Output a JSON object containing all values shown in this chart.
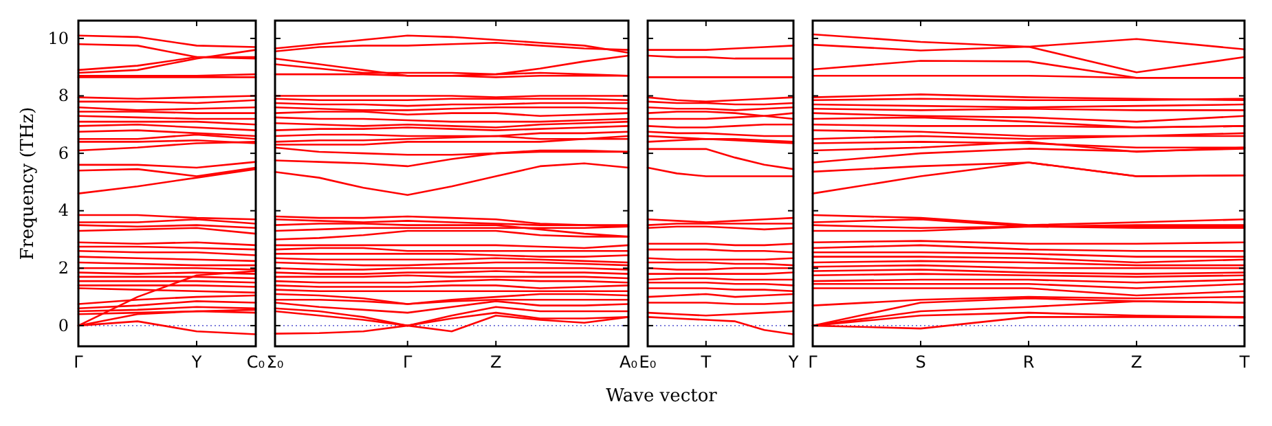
{
  "chart_data": [
    {
      "type": "line",
      "ylabel": "Frequency (THz)",
      "categories": [
        "Γ",
        null,
        "Y",
        "C₀"
      ],
      "ylim": [
        -0.72,
        10.62
      ],
      "yticks": [
        0,
        2,
        4,
        6,
        8,
        10
      ],
      "ref_lines": [
        {
          "axis": "y",
          "value": 0,
          "color": "#6b6bd6",
          "line_style": "dotted"
        }
      ],
      "series": [
        {
          "color": "#ff0000",
          "values": [
            10.1,
            10.05,
            9.75,
            9.7
          ]
        },
        {
          "color": "#ff0000",
          "values": [
            9.8,
            9.75,
            9.35,
            9.3
          ]
        },
        {
          "color": "#ff0000",
          "values": [
            8.9,
            9.05,
            9.35,
            9.35
          ]
        },
        {
          "color": "#ff0000",
          "values": [
            8.8,
            8.9,
            9.3,
            9.6
          ]
        },
        {
          "color": "#ff0000",
          "values": [
            8.7,
            8.7,
            8.7,
            8.75
          ]
        },
        {
          "color": "#ff0000",
          "values": [
            8.65,
            8.65,
            8.65,
            8.65
          ]
        },
        {
          "color": "#ff0000",
          "values": [
            7.95,
            7.9,
            7.95,
            8.0
          ]
        },
        {
          "color": "#ff0000",
          "values": [
            7.8,
            7.8,
            7.75,
            7.85
          ]
        },
        {
          "color": "#ff0000",
          "values": [
            7.6,
            7.5,
            7.55,
            7.6
          ]
        },
        {
          "color": "#ff0000",
          "values": [
            7.45,
            7.45,
            7.4,
            7.4
          ]
        },
        {
          "color": "#ff0000",
          "values": [
            7.3,
            7.25,
            7.2,
            7.2
          ]
        },
        {
          "color": "#ff0000",
          "values": [
            7.1,
            7.1,
            7.1,
            7.0
          ]
        },
        {
          "color": "#ff0000",
          "values": [
            6.95,
            7.0,
            6.9,
            6.8
          ]
        },
        {
          "color": "#ff0000",
          "values": [
            6.75,
            6.8,
            6.7,
            6.6
          ]
        },
        {
          "color": "#ff0000",
          "values": [
            6.5,
            6.5,
            6.65,
            6.5
          ]
        },
        {
          "color": "#ff0000",
          "values": [
            6.4,
            6.4,
            6.45,
            6.35
          ]
        },
        {
          "color": "#ff0000",
          "values": [
            6.1,
            6.2,
            6.35,
            6.4
          ]
        },
        {
          "color": "#ff0000",
          "values": [
            5.6,
            5.6,
            5.5,
            5.7
          ]
        },
        {
          "color": "#ff0000",
          "values": [
            5.4,
            5.45,
            5.2,
            5.5
          ]
        },
        {
          "color": "#ff0000",
          "values": [
            4.6,
            4.85,
            5.15,
            5.45
          ]
        },
        {
          "color": "#ff0000",
          "values": [
            3.85,
            3.85,
            3.75,
            3.7
          ]
        },
        {
          "color": "#ff0000",
          "values": [
            3.6,
            3.6,
            3.7,
            3.55
          ]
        },
        {
          "color": "#ff0000",
          "values": [
            3.5,
            3.45,
            3.5,
            3.4
          ]
        },
        {
          "color": "#ff0000",
          "values": [
            3.3,
            3.35,
            3.4,
            3.2
          ]
        },
        {
          "color": "#ff0000",
          "values": [
            2.9,
            2.85,
            2.9,
            2.8
          ]
        },
        {
          "color": "#ff0000",
          "values": [
            2.75,
            2.75,
            2.7,
            2.65
          ]
        },
        {
          "color": "#ff0000",
          "values": [
            2.6,
            2.55,
            2.55,
            2.45
          ]
        },
        {
          "color": "#ff0000",
          "values": [
            2.4,
            2.35,
            2.3,
            2.25
          ]
        },
        {
          "color": "#ff0000",
          "values": [
            2.2,
            2.15,
            2.1,
            2.1
          ]
        },
        {
          "color": "#ff0000",
          "values": [
            2.0,
            2.0,
            2.0,
            1.95
          ]
        },
        {
          "color": "#ff0000",
          "values": [
            1.85,
            1.8,
            1.85,
            1.8
          ]
        },
        {
          "color": "#ff0000",
          "values": [
            1.7,
            1.7,
            1.7,
            1.65
          ]
        },
        {
          "color": "#ff0000",
          "values": [
            1.55,
            1.55,
            1.55,
            1.5
          ]
        },
        {
          "color": "#ff0000",
          "values": [
            1.4,
            1.4,
            1.4,
            1.35
          ]
        },
        {
          "color": "#ff0000",
          "values": [
            1.3,
            1.25,
            1.2,
            1.15
          ]
        },
        {
          "color": "#ff0000",
          "values": [
            0.75,
            0.9,
            1.0,
            1.05
          ]
        },
        {
          "color": "#ff0000",
          "values": [
            0.6,
            0.7,
            0.85,
            0.8
          ]
        },
        {
          "color": "#ff0000",
          "values": [
            0.5,
            0.55,
            0.65,
            0.6
          ]
        },
        {
          "color": "#ff0000",
          "values": [
            0.4,
            0.45,
            0.5,
            0.45
          ]
        },
        {
          "color": "#ff0000",
          "values": [
            0,
            1.0,
            1.75,
            1.9
          ]
        },
        {
          "color": "#ff0000",
          "values": [
            0,
            0.4,
            0.5,
            0.55
          ]
        },
        {
          "color": "#ff0000",
          "values": [
            0,
            0.15,
            -0.2,
            -0.3
          ]
        }
      ]
    },
    {
      "type": "line",
      "categories": [
        "Σ₀",
        null,
        null,
        "Γ",
        null,
        "Z",
        null,
        null,
        "A₀"
      ],
      "ylim": [
        -0.72,
        10.62
      ],
      "yticks": [
        0,
        2,
        4,
        6,
        8,
        10
      ],
      "tick_labels": "x",
      "ref_lines": [
        {
          "axis": "y",
          "value": 0,
          "color": "#6b6bd6",
          "line_style": "dotted"
        }
      ],
      "series": [
        {
          "color": "#ff0000",
          "values": [
            9.65,
            9.8,
            9.95,
            10.1,
            10.05,
            9.95,
            9.85,
            9.75,
            9.5
          ]
        },
        {
          "color": "#ff0000",
          "values": [
            9.55,
            9.7,
            9.75,
            9.75,
            9.8,
            9.85,
            9.75,
            9.65,
            9.6
          ]
        },
        {
          "color": "#ff0000",
          "values": [
            9.3,
            9.1,
            8.9,
            8.7,
            8.7,
            8.75,
            8.95,
            9.2,
            9.4
          ]
        },
        {
          "color": "#ff0000",
          "values": [
            9.1,
            8.95,
            8.8,
            8.8,
            8.8,
            8.75,
            8.8,
            8.75,
            8.7
          ]
        },
        {
          "color": "#ff0000",
          "values": [
            8.75,
            8.75,
            8.75,
            8.7,
            8.7,
            8.65,
            8.7,
            8.7,
            8.7
          ]
        },
        {
          "color": "#ff0000",
          "values": [
            8.0,
            8.0,
            8.0,
            8.0,
            8.0,
            7.95,
            8.0,
            8.0,
            8.0
          ]
        },
        {
          "color": "#ff0000",
          "values": [
            7.9,
            7.85,
            7.85,
            7.85,
            7.9,
            7.9,
            7.9,
            7.9,
            7.85
          ]
        },
        {
          "color": "#ff0000",
          "values": [
            7.75,
            7.7,
            7.7,
            7.65,
            7.7,
            7.7,
            7.75,
            7.75,
            7.75
          ]
        },
        {
          "color": "#ff0000",
          "values": [
            7.6,
            7.55,
            7.5,
            7.5,
            7.55,
            7.6,
            7.6,
            7.6,
            7.55
          ]
        },
        {
          "color": "#ff0000",
          "values": [
            7.4,
            7.45,
            7.45,
            7.35,
            7.4,
            7.4,
            7.3,
            7.35,
            7.4
          ]
        },
        {
          "color": "#ff0000",
          "values": [
            7.25,
            7.2,
            7.2,
            7.15,
            7.1,
            7.1,
            7.1,
            7.15,
            7.2
          ]
        },
        {
          "color": "#ff0000",
          "values": [
            7.05,
            7.0,
            6.95,
            7.0,
            6.95,
            6.9,
            7.0,
            7.05,
            7.1
          ]
        },
        {
          "color": "#ff0000",
          "values": [
            6.8,
            6.85,
            6.85,
            6.9,
            6.85,
            6.8,
            6.85,
            6.9,
            6.95
          ]
        },
        {
          "color": "#ff0000",
          "values": [
            6.6,
            6.65,
            6.65,
            6.6,
            6.6,
            6.6,
            6.7,
            6.7,
            6.75
          ]
        },
        {
          "color": "#ff0000",
          "values": [
            6.4,
            6.45,
            6.45,
            6.5,
            6.55,
            6.6,
            6.5,
            6.5,
            6.5
          ]
        },
        {
          "color": "#ff0000",
          "values": [
            6.3,
            6.3,
            6.3,
            6.4,
            6.4,
            6.4,
            6.4,
            6.5,
            6.6
          ]
        },
        {
          "color": "#ff0000",
          "values": [
            6.2,
            6.05,
            6.0,
            5.95,
            5.95,
            6.0,
            6.1,
            6.1,
            6.05
          ]
        },
        {
          "color": "#ff0000",
          "values": [
            5.75,
            5.7,
            5.65,
            5.55,
            5.8,
            6.0,
            6.05,
            6.05,
            6.05
          ]
        },
        {
          "color": "#ff0000",
          "values": [
            5.35,
            5.15,
            4.8,
            4.55,
            4.85,
            5.2,
            5.55,
            5.65,
            5.5
          ]
        },
        {
          "color": "#ff0000",
          "values": [
            3.8,
            3.75,
            3.75,
            3.8,
            3.75,
            3.7,
            3.55,
            3.5,
            3.5
          ]
        },
        {
          "color": "#ff0000",
          "values": [
            3.7,
            3.65,
            3.6,
            3.65,
            3.6,
            3.55,
            3.5,
            3.5,
            3.45
          ]
        },
        {
          "color": "#ff0000",
          "values": [
            3.5,
            3.55,
            3.55,
            3.5,
            3.5,
            3.5,
            3.35,
            3.2,
            3.1
          ]
        },
        {
          "color": "#ff0000",
          "values": [
            3.3,
            3.35,
            3.4,
            3.4,
            3.4,
            3.4,
            3.4,
            3.4,
            3.45
          ]
        },
        {
          "color": "#ff0000",
          "values": [
            3.0,
            3.05,
            3.15,
            3.3,
            3.3,
            3.3,
            3.15,
            3.1,
            3.1
          ]
        },
        {
          "color": "#ff0000",
          "values": [
            2.8,
            2.8,
            2.8,
            2.8,
            2.8,
            2.8,
            2.75,
            2.7,
            2.8
          ]
        },
        {
          "color": "#ff0000",
          "values": [
            2.65,
            2.7,
            2.7,
            2.6,
            2.6,
            2.6,
            2.6,
            2.6,
            2.6
          ]
        },
        {
          "color": "#ff0000",
          "values": [
            2.5,
            2.5,
            2.5,
            2.5,
            2.5,
            2.45,
            2.4,
            2.4,
            2.45
          ]
        },
        {
          "color": "#ff0000",
          "values": [
            2.35,
            2.3,
            2.3,
            2.3,
            2.3,
            2.35,
            2.3,
            2.25,
            2.2
          ]
        },
        {
          "color": "#ff0000",
          "values": [
            2.2,
            2.15,
            2.1,
            2.1,
            2.15,
            2.2,
            2.2,
            2.15,
            2.1
          ]
        },
        {
          "color": "#ff0000",
          "values": [
            2.0,
            1.95,
            1.95,
            2.0,
            2.0,
            2.0,
            2.0,
            2.0,
            1.95
          ]
        },
        {
          "color": "#ff0000",
          "values": [
            1.85,
            1.8,
            1.8,
            1.85,
            1.85,
            1.9,
            1.85,
            1.85,
            1.8
          ]
        },
        {
          "color": "#ff0000",
          "values": [
            1.7,
            1.7,
            1.7,
            1.75,
            1.7,
            1.7,
            1.7,
            1.7,
            1.65
          ]
        },
        {
          "color": "#ff0000",
          "values": [
            1.55,
            1.5,
            1.5,
            1.5,
            1.55,
            1.6,
            1.55,
            1.55,
            1.5
          ]
        },
        {
          "color": "#ff0000",
          "values": [
            1.4,
            1.35,
            1.35,
            1.35,
            1.4,
            1.4,
            1.3,
            1.35,
            1.4
          ]
        },
        {
          "color": "#ff0000",
          "values": [
            1.25,
            1.2,
            1.2,
            1.2,
            1.2,
            1.2,
            1.2,
            1.2,
            1.2
          ]
        },
        {
          "color": "#ff0000",
          "values": [
            1.1,
            1.05,
            0.95,
            0.75,
            0.9,
            1.0,
            1.1,
            1.1,
            1.05
          ]
        },
        {
          "color": "#ff0000",
          "values": [
            0.9,
            0.9,
            0.85,
            0.75,
            0.85,
            0.9,
            0.9,
            0.9,
            0.9
          ]
        },
        {
          "color": "#ff0000",
          "values": [
            0.8,
            0.65,
            0.55,
            0.45,
            0.65,
            0.85,
            0.7,
            0.7,
            0.75
          ]
        },
        {
          "color": "#ff0000",
          "values": [
            0.6,
            0.5,
            0.3,
            0,
            0.35,
            0.65,
            0.5,
            0.5,
            0.5
          ]
        },
        {
          "color": "#ff0000",
          "values": [
            0.5,
            0.35,
            0.2,
            0,
            0.25,
            0.45,
            0.25,
            0.25,
            0.3
          ]
        },
        {
          "color": "#ff0000",
          "values": [
            -0.28,
            -0.26,
            -0.2,
            0,
            -0.2,
            0.35,
            0.2,
            0.1,
            0.3
          ]
        }
      ]
    },
    {
      "type": "line",
      "xlabel": "Wave vector",
      "categories": [
        "E₀",
        null,
        "T",
        null,
        null,
        "Y"
      ],
      "ylim": [
        -0.72,
        10.62
      ],
      "yticks": [
        0,
        2,
        4,
        6,
        8,
        10
      ],
      "tick_labels": "x",
      "ref_lines": [
        {
          "axis": "y",
          "value": 0,
          "color": "#6b6bd6",
          "line_style": "dotted"
        }
      ],
      "series": [
        {
          "color": "#ff0000",
          "values": [
            9.6,
            9.6,
            9.6,
            9.65,
            9.7,
            9.75
          ]
        },
        {
          "color": "#ff0000",
          "values": [
            9.4,
            9.35,
            9.35,
            9.3,
            9.3,
            9.3
          ]
        },
        {
          "color": "#ff0000",
          "values": [
            8.65,
            8.65,
            8.65,
            8.65,
            8.65,
            8.65
          ]
        },
        {
          "color": "#ff0000",
          "values": [
            7.95,
            7.85,
            7.8,
            7.85,
            7.9,
            7.95
          ]
        },
        {
          "color": "#ff0000",
          "values": [
            7.8,
            7.75,
            7.75,
            7.7,
            7.7,
            7.75
          ]
        },
        {
          "color": "#ff0000",
          "values": [
            7.6,
            7.55,
            7.55,
            7.5,
            7.55,
            7.6
          ]
        },
        {
          "color": "#ff0000",
          "values": [
            7.4,
            7.45,
            7.45,
            7.4,
            7.3,
            7.2
          ]
        },
        {
          "color": "#ff0000",
          "values": [
            7.2,
            7.2,
            7.2,
            7.25,
            7.3,
            7.4
          ]
        },
        {
          "color": "#ff0000",
          "values": [
            6.95,
            6.9,
            6.9,
            6.95,
            7.0,
            7.0
          ]
        },
        {
          "color": "#ff0000",
          "values": [
            6.75,
            6.7,
            6.7,
            6.65,
            6.6,
            6.6
          ]
        },
        {
          "color": "#ff0000",
          "values": [
            6.6,
            6.55,
            6.5,
            6.5,
            6.45,
            6.4
          ]
        },
        {
          "color": "#ff0000",
          "values": [
            6.4,
            6.45,
            6.5,
            6.45,
            6.4,
            6.35
          ]
        },
        {
          "color": "#ff0000",
          "values": [
            6.15,
            6.15,
            6.15,
            5.85,
            5.6,
            5.45
          ]
        },
        {
          "color": "#ff0000",
          "values": [
            5.5,
            5.3,
            5.2,
            5.2,
            5.2,
            5.2
          ]
        },
        {
          "color": "#ff0000",
          "values": [
            3.7,
            3.65,
            3.6,
            3.65,
            3.7,
            3.75
          ]
        },
        {
          "color": "#ff0000",
          "values": [
            3.5,
            3.55,
            3.55,
            3.55,
            3.55,
            3.55
          ]
        },
        {
          "color": "#ff0000",
          "values": [
            3.4,
            3.45,
            3.45,
            3.4,
            3.35,
            3.4
          ]
        },
        {
          "color": "#ff0000",
          "values": [
            2.85,
            2.85,
            2.85,
            2.8,
            2.8,
            2.85
          ]
        },
        {
          "color": "#ff0000",
          "values": [
            2.65,
            2.65,
            2.65,
            2.6,
            2.6,
            2.55
          ]
        },
        {
          "color": "#ff0000",
          "values": [
            2.35,
            2.3,
            2.3,
            2.3,
            2.3,
            2.35
          ]
        },
        {
          "color": "#ff0000",
          "values": [
            2.2,
            2.2,
            2.2,
            2.15,
            2.15,
            2.1
          ]
        },
        {
          "color": "#ff0000",
          "values": [
            2.0,
            1.95,
            1.95,
            2.0,
            2.0,
            2.0
          ]
        },
        {
          "color": "#ff0000",
          "values": [
            1.8,
            1.8,
            1.8,
            1.8,
            1.8,
            1.85
          ]
        },
        {
          "color": "#ff0000",
          "values": [
            1.6,
            1.65,
            1.65,
            1.6,
            1.6,
            1.6
          ]
        },
        {
          "color": "#ff0000",
          "values": [
            1.5,
            1.5,
            1.5,
            1.45,
            1.45,
            1.4
          ]
        },
        {
          "color": "#ff0000",
          "values": [
            1.3,
            1.3,
            1.3,
            1.25,
            1.25,
            1.2
          ]
        },
        {
          "color": "#ff0000",
          "values": [
            1.0,
            1.05,
            1.1,
            1.0,
            1.05,
            1.1
          ]
        },
        {
          "color": "#ff0000",
          "values": [
            0.8,
            0.8,
            0.8,
            0.75,
            0.75,
            0.8
          ]
        },
        {
          "color": "#ff0000",
          "values": [
            0.45,
            0.4,
            0.35,
            0.4,
            0.45,
            0.5
          ]
        },
        {
          "color": "#ff0000",
          "values": [
            0.3,
            0.25,
            0.2,
            0.15,
            -0.15,
            -0.3
          ]
        }
      ]
    },
    {
      "type": "line",
      "categories": [
        "Γ",
        "S",
        "R",
        "Z",
        "T"
      ],
      "ylim": [
        -0.72,
        10.62
      ],
      "yticks": [
        0,
        2,
        4,
        6,
        8,
        10
      ],
      "tick_labels": "x",
      "ref_lines": [
        {
          "axis": "y",
          "value": 0,
          "color": "#6b6bd6",
          "line_style": "dotted"
        }
      ],
      "series": [
        {
          "color": "#ff0000",
          "values": [
            10.14,
            9.88,
            9.71,
            9.98,
            9.62
          ]
        },
        {
          "color": "#ff0000",
          "values": [
            9.78,
            9.58,
            9.71,
            8.82,
            9.35
          ]
        },
        {
          "color": "#ff0000",
          "values": [
            8.92,
            9.22,
            9.2,
            8.63,
            8.63
          ]
        },
        {
          "color": "#ff0000",
          "values": [
            8.7,
            8.7,
            8.7,
            8.63,
            8.63
          ]
        },
        {
          "color": "#ff0000",
          "values": [
            7.95,
            8.05,
            7.95,
            7.9,
            7.85
          ]
        },
        {
          "color": "#ff0000",
          "values": [
            7.85,
            7.9,
            7.85,
            7.85,
            7.9
          ]
        },
        {
          "color": "#ff0000",
          "values": [
            7.7,
            7.65,
            7.6,
            7.65,
            7.7
          ]
        },
        {
          "color": "#ff0000",
          "values": [
            7.55,
            7.5,
            7.55,
            7.5,
            7.5
          ]
        },
        {
          "color": "#ff0000",
          "values": [
            7.4,
            7.3,
            7.25,
            7.1,
            7.3
          ]
        },
        {
          "color": "#ff0000",
          "values": [
            7.2,
            7.25,
            7.1,
            6.9,
            6.95
          ]
        },
        {
          "color": "#ff0000",
          "values": [
            7.0,
            6.95,
            6.95,
            6.9,
            6.95
          ]
        },
        {
          "color": "#ff0000",
          "values": [
            6.8,
            6.75,
            6.6,
            6.6,
            6.7
          ]
        },
        {
          "color": "#ff0000",
          "values": [
            6.5,
            6.6,
            6.5,
            6.6,
            6.6
          ]
        },
        {
          "color": "#ff0000",
          "values": [
            6.35,
            6.4,
            6.35,
            6.2,
            6.2
          ]
        },
        {
          "color": "#ff0000",
          "values": [
            6.1,
            6.2,
            6.4,
            6.05,
            6.2
          ]
        },
        {
          "color": "#ff0000",
          "values": [
            5.68,
            6.0,
            6.16,
            6.07,
            6.16
          ]
        },
        {
          "color": "#ff0000",
          "values": [
            5.36,
            5.55,
            5.68,
            5.2,
            5.23
          ]
        },
        {
          "color": "#ff0000",
          "values": [
            4.6,
            5.2,
            5.68,
            5.2,
            5.23
          ]
        },
        {
          "color": "#ff0000",
          "values": [
            3.85,
            3.75,
            3.5,
            3.6,
            3.7
          ]
        },
        {
          "color": "#ff0000",
          "values": [
            3.6,
            3.7,
            3.45,
            3.5,
            3.5
          ]
        },
        {
          "color": "#ff0000",
          "values": [
            3.5,
            3.4,
            3.45,
            3.45,
            3.45
          ]
        },
        {
          "color": "#ff0000",
          "values": [
            3.3,
            3.3,
            3.45,
            3.4,
            3.4
          ]
        },
        {
          "color": "#ff0000",
          "values": [
            2.9,
            2.95,
            2.85,
            2.85,
            2.9
          ]
        },
        {
          "color": "#ff0000",
          "values": [
            2.7,
            2.8,
            2.65,
            2.6,
            2.6
          ]
        },
        {
          "color": "#ff0000",
          "values": [
            2.55,
            2.55,
            2.5,
            2.4,
            2.4
          ]
        },
        {
          "color": "#ff0000",
          "values": [
            2.4,
            2.4,
            2.35,
            2.2,
            2.3
          ]
        },
        {
          "color": "#ff0000",
          "values": [
            2.2,
            2.25,
            2.2,
            2.1,
            2.1
          ]
        },
        {
          "color": "#ff0000",
          "values": [
            2.05,
            2.1,
            2.0,
            2.0,
            2.0
          ]
        },
        {
          "color": "#ff0000",
          "values": [
            1.9,
            1.95,
            1.85,
            1.8,
            1.85
          ]
        },
        {
          "color": "#ff0000",
          "values": [
            1.75,
            1.8,
            1.75,
            1.7,
            1.75
          ]
        },
        {
          "color": "#ff0000",
          "values": [
            1.55,
            1.6,
            1.6,
            1.5,
            1.6
          ]
        },
        {
          "color": "#ff0000",
          "values": [
            1.45,
            1.45,
            1.45,
            1.3,
            1.45
          ]
        },
        {
          "color": "#ff0000",
          "values": [
            1.3,
            1.3,
            1.3,
            1.05,
            1.2
          ]
        },
        {
          "color": "#ff0000",
          "values": [
            0.7,
            0.9,
            1.0,
            0.95,
            1.0
          ]
        },
        {
          "color": "#ff0000",
          "values": [
            0,
            0.8,
            0.95,
            0.85,
            0.8
          ]
        },
        {
          "color": "#ff0000",
          "values": [
            0,
            0.5,
            0.65,
            0.85,
            0.8
          ]
        },
        {
          "color": "#ff0000",
          "values": [
            0,
            0.35,
            0.45,
            0.35,
            0.3
          ]
        },
        {
          "color": "#ff0000",
          "values": [
            0,
            -0.1,
            0.3,
            0.3,
            0.28
          ]
        }
      ]
    }
  ]
}
